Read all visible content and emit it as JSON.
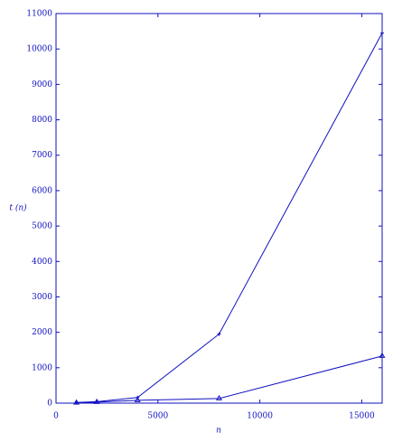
{
  "chart_data": {
    "type": "line",
    "xlabel": "n",
    "ylabel": "t (n)",
    "x": [
      1000,
      2000,
      4000,
      8000,
      16000
    ],
    "series": [
      {
        "color": "#1010c0",
        "marker": "plus",
        "values": [
          20,
          40,
          160,
          1950,
          10450
        ]
      },
      {
        "color": "#1010c0",
        "marker": "triangle",
        "values": [
          10,
          30,
          80,
          130,
          1330
        ]
      }
    ],
    "xlim": [
      0,
      16000
    ],
    "xticks": [
      0,
      5000,
      10000,
      15000
    ],
    "ylim": [
      0,
      11000
    ],
    "yticks": [
      0,
      1000,
      2000,
      3000,
      4000,
      5000,
      6000,
      7000,
      8000,
      9000,
      10000,
      11000
    ],
    "axis_color": "#1010c0"
  }
}
